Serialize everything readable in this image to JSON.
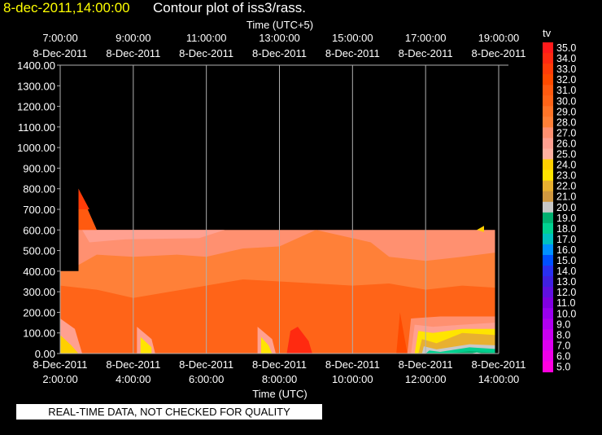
{
  "header": {
    "timestamp": "8-dec-2011,14:00:00",
    "title": "Contour plot of iss3/rass."
  },
  "quality_note": "REAL-TIME DATA, NOT CHECKED FOR QUALITY",
  "colors": {
    "background": "#000000",
    "timestamp": "#ffff00",
    "text": "#ffffff",
    "grid": "#b0b0b0"
  },
  "chart_data": {
    "type": "heatmap",
    "top_axis_label": "Time (UTC+5)",
    "bottom_axis_label": "Time (UTC)",
    "top_ticks": [
      {
        "time": "7:00:00",
        "date": "8-Dec-2011"
      },
      {
        "time": "9:00:00",
        "date": "8-Dec-2011"
      },
      {
        "time": "11:00:00",
        "date": "8-Dec-2011"
      },
      {
        "time": "13:00:00",
        "date": "8-Dec-2011"
      },
      {
        "time": "15:00:00",
        "date": "8-Dec-2011"
      },
      {
        "time": "17:00:00",
        "date": "8-Dec-2011"
      },
      {
        "time": "19:00:00",
        "date": "8-Dec-2011"
      }
    ],
    "bottom_ticks": [
      {
        "time": "2:00:00",
        "date": "8-Dec-2011"
      },
      {
        "time": "4:00:00",
        "date": "8-Dec-2011"
      },
      {
        "time": "6:00:00",
        "date": "8-Dec-2011"
      },
      {
        "time": "8:00:00",
        "date": "8-Dec-2011"
      },
      {
        "time": "10:00:00",
        "date": "8-Dec-2011"
      },
      {
        "time": "12:00:00",
        "date": "8-Dec-2011"
      },
      {
        "time": "14:00:00",
        "date": "8-Dec-2011"
      }
    ],
    "x_range_hours_utc": [
      2,
      14
    ],
    "ylim": [
      0,
      1400
    ],
    "y_ticks": [
      "0.00",
      "100.00",
      "200.00",
      "300.00",
      "400.00",
      "500.00",
      "600.00",
      "700.00",
      "800.00",
      "900.00",
      "1000.00",
      "1100.00",
      "1200.00",
      "1300.00",
      "1400.00"
    ],
    "grid": "vertical lines at every tick",
    "colorbar": {
      "label": "tv",
      "levels": [
        "35.0",
        "34.0",
        "33.0",
        "32.0",
        "31.0",
        "30.0",
        "29.0",
        "28.0",
        "27.0",
        "26.0",
        "25.0",
        "24.0",
        "23.0",
        "22.0",
        "21.0",
        "20.0",
        "19.0",
        "18.0",
        "17.0",
        "16.0",
        "15.0",
        "14.0",
        "13.0",
        "12.0",
        "11.0",
        "10.0",
        "9.0",
        "8.0",
        "7.0",
        "6.0",
        "5.0"
      ],
      "colors": [
        "#ff1a1a",
        "#ff2a10",
        "#ff3c08",
        "#ff4a00",
        "#ff5a10",
        "#ff6418",
        "#ff7428",
        "#ff8038",
        "#ff9070",
        "#ffa090",
        "#ffb0a0",
        "#ffd000",
        "#ffe400",
        "#e8b030",
        "#d09840",
        "#c8c8c8",
        "#00b070",
        "#00d090",
        "#00c0c0",
        "#0090ff",
        "#0050ff",
        "#2a30f0",
        "#4020e0",
        "#6010e0",
        "#8000e0",
        "#9900ee",
        "#b000f0",
        "#c800f0",
        "#dd00f0",
        "#ee00e8",
        "#ff00e0"
      ],
      "legend_position": "right"
    },
    "data_coverage": {
      "x_start_hours_utc": 2.0,
      "x_end_hours_utc": 14.0,
      "top_height": 600,
      "early_spike": {
        "x_hours_utc": [
          2.5,
          3.0
        ],
        "top_height": 800
      },
      "early_top_height": 400
    },
    "contour_bands": [
      {
        "level": "27.0",
        "description": "upper layer",
        "approx_height_range": [
          430,
          600
        ]
      },
      {
        "level": "28.0",
        "description": "middle layer",
        "approx_height_range": [
          300,
          470
        ]
      },
      {
        "level": "30.0",
        "description": "lower layer",
        "approx_height_range": [
          0,
          330
        ]
      }
    ]
  }
}
